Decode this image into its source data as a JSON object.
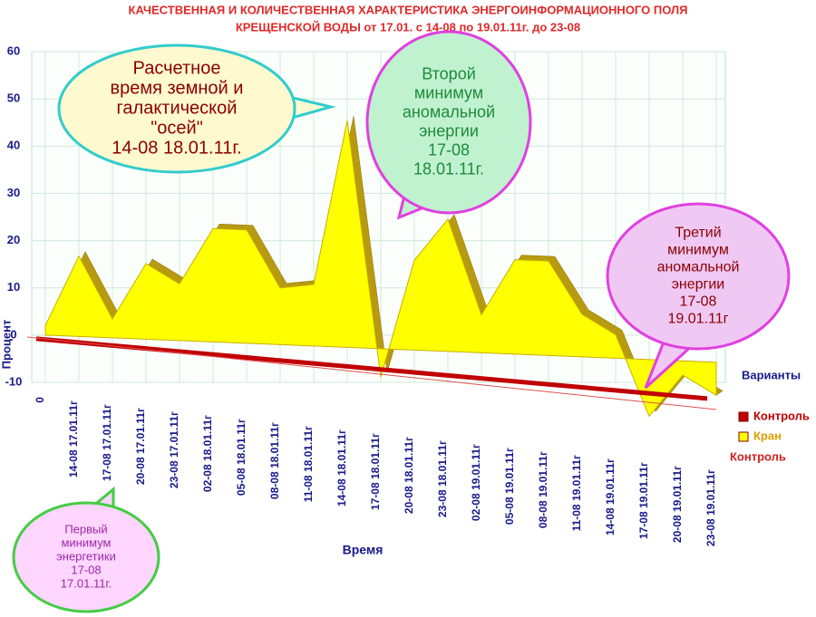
{
  "chart_data": {
    "type": "area",
    "title": [
      "КАЧЕСТВЕННАЯ И КОЛИЧЕСТВЕННАЯ ХАРАКТЕРИСТИКА ЭНЕРГОИНФОРМАЦИОННОГО ПОЛЯ",
      "КРЕЩЕНСКОЙ ВОДЫ от 17.01. с 14-08 по 19.01.11г. до 23-08"
    ],
    "y_label": "Процент",
    "x_label": "Время",
    "legend_title": "Варианты",
    "depth_labels": [
      "Контроль"
    ],
    "categories": [
      "0",
      "14-08 17.01.11г",
      "17-08 17.01.11г",
      "20-08 17.01.11г",
      "23-08 17.01.11г",
      "02-08 18.01.11г",
      "05-08 18.01.11г",
      "08-08 18.01.11г",
      "11-08 18.01.11г",
      "14-08 18.01.11г",
      "17-08 18.01.11г",
      "20-08 18.01.11г",
      "23-08 18.01.11г",
      "02-08 19.01.11г",
      "05-08 19.01.11г",
      "08-08 19.01.11г",
      "11-08 19.01.11г",
      "14-08 19.01.11г",
      "17-08 19.01.11г",
      "20-08 19.01.11г",
      "23-08 19.01.11г"
    ],
    "series": [
      {
        "name": "Контроль",
        "color": "#c00000",
        "values": [
          0,
          0,
          0,
          0,
          0,
          0,
          0,
          0,
          0,
          0,
          0,
          0,
          0,
          0,
          0,
          0,
          0,
          0,
          0,
          0,
          0
        ]
      },
      {
        "name": "Кран",
        "color": "#ffff00",
        "values": [
          2,
          17,
          4,
          16,
          12,
          24,
          24,
          12,
          13,
          48,
          -6,
          19,
          28,
          8,
          20,
          20,
          9,
          5,
          -12,
          -3,
          -7
        ]
      }
    ],
    "ylim": [
      -10,
      60
    ],
    "yticks": [
      -10,
      0,
      10,
      20,
      30,
      40,
      50,
      60
    ],
    "grid": true,
    "annotations": [
      [
        "Расчетное",
        "время земной и",
        "галактической",
        "\"осей\"",
        "14-08 18.01.11г."
      ],
      [
        "Второй",
        "минимум",
        "аномальной",
        "энергии",
        "17-08",
        "18.01.11г."
      ],
      [
        "Третий",
        "минимум",
        "аномальной",
        "энергии",
        "17-08",
        "19.01.11г"
      ],
      [
        "Первый",
        "минимум",
        "энергетики",
        "17-08",
        "17.01.11г."
      ]
    ]
  }
}
